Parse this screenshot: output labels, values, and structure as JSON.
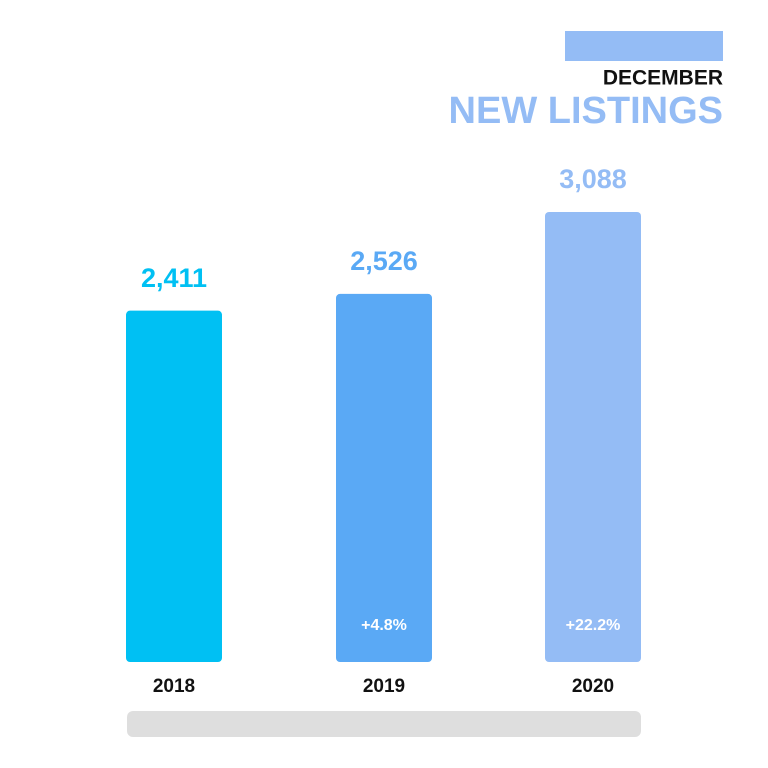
{
  "chart_data": {
    "type": "bar",
    "title": "NEW LISTINGS",
    "subtitle": "DECEMBER",
    "categories": [
      "2018",
      "2019",
      "2020"
    ],
    "values": [
      2411,
      2526,
      3088
    ],
    "value_labels": [
      "2,411",
      "2,526",
      "3,088"
    ],
    "change_labels": [
      null,
      "+4.8%",
      "+22.2%"
    ],
    "colors": [
      "#00c0f3",
      "#5aa9f5",
      "#94bcf5"
    ],
    "title_color": "#94bcf5"
  }
}
